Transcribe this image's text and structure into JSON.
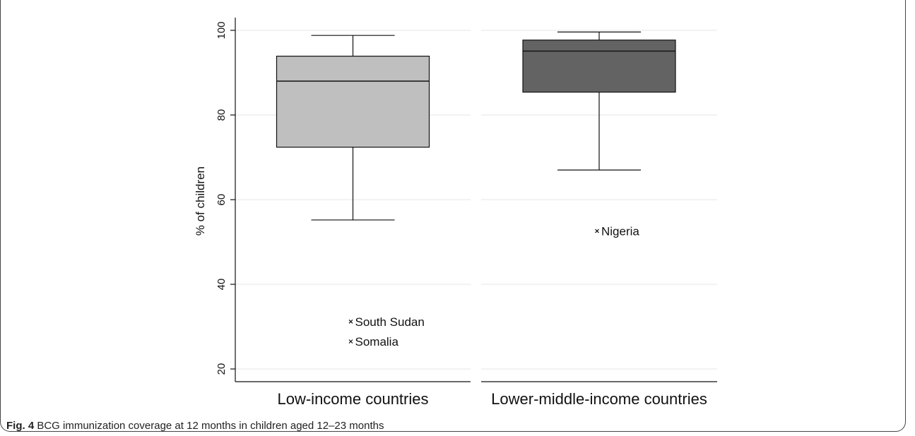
{
  "chart_data": {
    "type": "boxplot",
    "title": "",
    "ylabel": "% of children",
    "ylim": [
      18,
      103
    ],
    "yticks": [
      20,
      40,
      60,
      80,
      100
    ],
    "grid": true,
    "categories": [
      "Low-income countries",
      "Lower-middle-income countries"
    ],
    "boxes": [
      {
        "category": "Low-income countries",
        "whisker_low": 55.2,
        "q1": 72.4,
        "median": 88,
        "q3": 93.9,
        "whisker_high": 98.8,
        "color": "#bfbfbf",
        "outliers": [
          {
            "label": "South Sudan",
            "value": 31.2
          },
          {
            "label": "Somalia",
            "value": 26.5
          }
        ]
      },
      {
        "category": "Lower-middle-income countries",
        "whisker_low": 67,
        "q1": 85.4,
        "median": 95.1,
        "q3": 97.7,
        "whisker_high": 99.6,
        "color": "#636363",
        "outliers": [
          {
            "label": "Nigeria",
            "value": 52.6
          }
        ]
      }
    ]
  },
  "caption": {
    "label": "Fig. 4",
    "text": " BCG immunization coverage at 12 months in children aged 12–23 months"
  }
}
